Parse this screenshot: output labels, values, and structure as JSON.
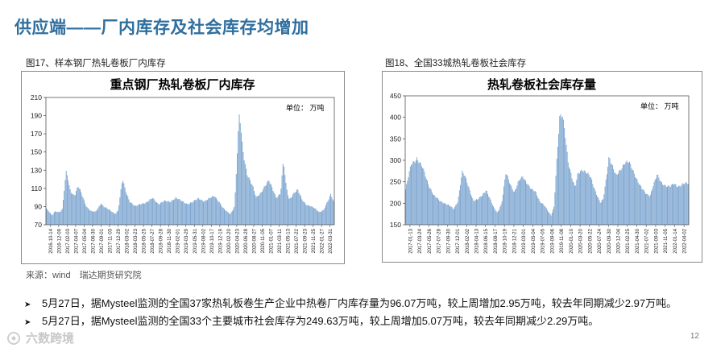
{
  "slide": {
    "title": "供应端——厂内库存及社会库存均增加",
    "source_label": "来源：wind",
    "source_org": "瑞达期货研究院",
    "page_number": "12",
    "watermark": "六数跨境"
  },
  "bullets": [
    {
      "text": "5月27日，据Mysteel监测的全国37家热轧板卷生产企业中热卷厂内库存量为96.07万吨，较上周增加2.95万吨，较去年同期减少2.97万吨。"
    },
    {
      "text": "5月27日，据Mysteel监测的全国33个主要城市社会库存为249.63万吨，较上周增加5.07万吨，较去年同期减少2.29万吨。"
    }
  ],
  "colors": {
    "title": "#2f6f9f",
    "bar": "#7ea6d0",
    "plot_border": "#555555"
  },
  "chart_data": [
    {
      "type": "bar",
      "caption": "图17、样本钢厂热轧卷板厂内库存",
      "title": "重点钢厂热轧卷板厂内库存",
      "unit": "单位：  万吨",
      "ylim": [
        70,
        210
      ],
      "yticks": [
        70,
        90,
        110,
        130,
        150,
        170,
        190,
        210
      ],
      "xticks": [
        "2016-10-14",
        "2016-12-09",
        "2017-02-03",
        "2017-04-07",
        "2017-05-04",
        "2017-06-30",
        "2017-09-01",
        "2017-11-03",
        "2017-12-29",
        "2018-03-02",
        "2018-03-23",
        "2018-05-25",
        "2018-07-27",
        "2018-09-28",
        "2018-11-30",
        "2019-02-01",
        "2019-03-29",
        "2019-05-31",
        "2019-08-02",
        "2019-10-17",
        "2019-12-19",
        "2020-02-20",
        "2020-04-23",
        "2020-06-28",
        "2020-08-27",
        "2020-11-05",
        "2021-01-07",
        "2021-03-11",
        "2021-05-13",
        "2021-07-22",
        "2021-09-23",
        "2021-11-25",
        "2022-01-27",
        "2022-03-31"
      ],
      "anchors": [
        [
          0,
          88
        ],
        [
          0.01,
          84
        ],
        [
          0.02,
          80
        ],
        [
          0.03,
          85
        ],
        [
          0.045,
          84
        ],
        [
          0.055,
          86
        ],
        [
          0.07,
          130
        ],
        [
          0.08,
          112
        ],
        [
          0.09,
          104
        ],
        [
          0.1,
          103
        ],
        [
          0.11,
          112
        ],
        [
          0.12,
          106
        ],
        [
          0.13,
          98
        ],
        [
          0.14,
          90
        ],
        [
          0.155,
          85
        ],
        [
          0.17,
          84
        ],
        [
          0.18,
          88
        ],
        [
          0.19,
          94
        ],
        [
          0.2,
          90
        ],
        [
          0.21,
          88
        ],
        [
          0.23,
          84
        ],
        [
          0.24,
          82
        ],
        [
          0.25,
          86
        ],
        [
          0.265,
          120
        ],
        [
          0.275,
          108
        ],
        [
          0.29,
          96
        ],
        [
          0.31,
          90
        ],
        [
          0.33,
          93
        ],
        [
          0.35,
          95
        ],
        [
          0.37,
          99
        ],
        [
          0.39,
          93
        ],
        [
          0.41,
          96
        ],
        [
          0.43,
          95
        ],
        [
          0.45,
          100
        ],
        [
          0.47,
          96
        ],
        [
          0.49,
          93
        ],
        [
          0.51,
          95
        ],
        [
          0.53,
          99
        ],
        [
          0.55,
          96
        ],
        [
          0.57,
          99
        ],
        [
          0.585,
          102
        ],
        [
          0.6,
          96
        ],
        [
          0.615,
          88
        ],
        [
          0.63,
          84
        ],
        [
          0.64,
          82
        ],
        [
          0.655,
          90
        ],
        [
          0.665,
          152
        ],
        [
          0.672,
          193
        ],
        [
          0.68,
          163
        ],
        [
          0.69,
          140
        ],
        [
          0.7,
          125
        ],
        [
          0.71,
          118
        ],
        [
          0.72,
          110
        ],
        [
          0.73,
          100
        ],
        [
          0.745,
          105
        ],
        [
          0.76,
          112
        ],
        [
          0.775,
          118
        ],
        [
          0.79,
          108
        ],
        [
          0.8,
          100
        ],
        [
          0.815,
          104
        ],
        [
          0.825,
          140
        ],
        [
          0.835,
          112
        ],
        [
          0.845,
          98
        ],
        [
          0.86,
          104
        ],
        [
          0.875,
          108
        ],
        [
          0.89,
          98
        ],
        [
          0.905,
          92
        ],
        [
          0.92,
          90
        ],
        [
          0.935,
          88
        ],
        [
          0.95,
          84
        ],
        [
          0.965,
          86
        ],
        [
          0.98,
          96
        ],
        [
          0.99,
          104
        ],
        [
          1.0,
          96
        ]
      ]
    },
    {
      "type": "bar",
      "caption": "图18、全国33城热轧卷板社会库存",
      "title": "热轧卷板社会库存量",
      "unit": "单位：  万吨",
      "ylim": [
        150,
        450
      ],
      "yticks": [
        150,
        200,
        250,
        300,
        350,
        400,
        450
      ],
      "xticks": [
        "2017-01-13",
        "2017-03-24",
        "2017-05-26",
        "2017-07-28",
        "2017-09-30",
        "2017-12-01",
        "2018-02-02",
        "2018-04-13",
        "2018-06-15",
        "2018-08-17",
        "2018-10-19",
        "2018-12-21",
        "2019-03-01",
        "2019-05-04",
        "2019-07-05",
        "2019-09-06",
        "2019-11-08",
        "2020-01-10",
        "2020-03-20",
        "2020-05-22",
        "2020-07-24",
        "2020-09-30",
        "2020-12-04",
        "2021-02-25",
        "2021-04-30",
        "2021-07-02",
        "2021-09-03",
        "2021-11-05",
        "2022-01-14",
        "2022-04-02"
      ],
      "anchors": [
        [
          0,
          232
        ],
        [
          0.02,
          290
        ],
        [
          0.04,
          306
        ],
        [
          0.06,
          282
        ],
        [
          0.08,
          246
        ],
        [
          0.1,
          218
        ],
        [
          0.12,
          206
        ],
        [
          0.14,
          200
        ],
        [
          0.16,
          192
        ],
        [
          0.17,
          186
        ],
        [
          0.185,
          205
        ],
        [
          0.2,
          272
        ],
        [
          0.21,
          262
        ],
        [
          0.225,
          235
        ],
        [
          0.24,
          206
        ],
        [
          0.255,
          208
        ],
        [
          0.27,
          218
        ],
        [
          0.285,
          232
        ],
        [
          0.3,
          208
        ],
        [
          0.31,
          192
        ],
        [
          0.325,
          178
        ],
        [
          0.34,
          200
        ],
        [
          0.355,
          270
        ],
        [
          0.37,
          246
        ],
        [
          0.385,
          226
        ],
        [
          0.4,
          250
        ],
        [
          0.415,
          262
        ],
        [
          0.43,
          248
        ],
        [
          0.445,
          232
        ],
        [
          0.46,
          226
        ],
        [
          0.475,
          205
        ],
        [
          0.49,
          196
        ],
        [
          0.505,
          180
        ],
        [
          0.515,
          172
        ],
        [
          0.525,
          192
        ],
        [
          0.535,
          300
        ],
        [
          0.545,
          395
        ],
        [
          0.555,
          402
        ],
        [
          0.565,
          360
        ],
        [
          0.575,
          300
        ],
        [
          0.59,
          255
        ],
        [
          0.6,
          235
        ],
        [
          0.61,
          270
        ],
        [
          0.625,
          280
        ],
        [
          0.64,
          270
        ],
        [
          0.655,
          260
        ],
        [
          0.67,
          232
        ],
        [
          0.68,
          215
        ],
        [
          0.69,
          200
        ],
        [
          0.7,
          210
        ],
        [
          0.71,
          258
        ],
        [
          0.72,
          312
        ],
        [
          0.73,
          290
        ],
        [
          0.745,
          262
        ],
        [
          0.76,
          278
        ],
        [
          0.775,
          296
        ],
        [
          0.79,
          295
        ],
        [
          0.805,
          275
        ],
        [
          0.82,
          255
        ],
        [
          0.835,
          235
        ],
        [
          0.85,
          222
        ],
        [
          0.865,
          218
        ],
        [
          0.875,
          240
        ],
        [
          0.89,
          265
        ],
        [
          0.905,
          248
        ],
        [
          0.92,
          242
        ],
        [
          0.935,
          238
        ],
        [
          0.95,
          245
        ],
        [
          0.965,
          240
        ],
        [
          0.98,
          244
        ],
        [
          1.0,
          246
        ]
      ]
    }
  ]
}
